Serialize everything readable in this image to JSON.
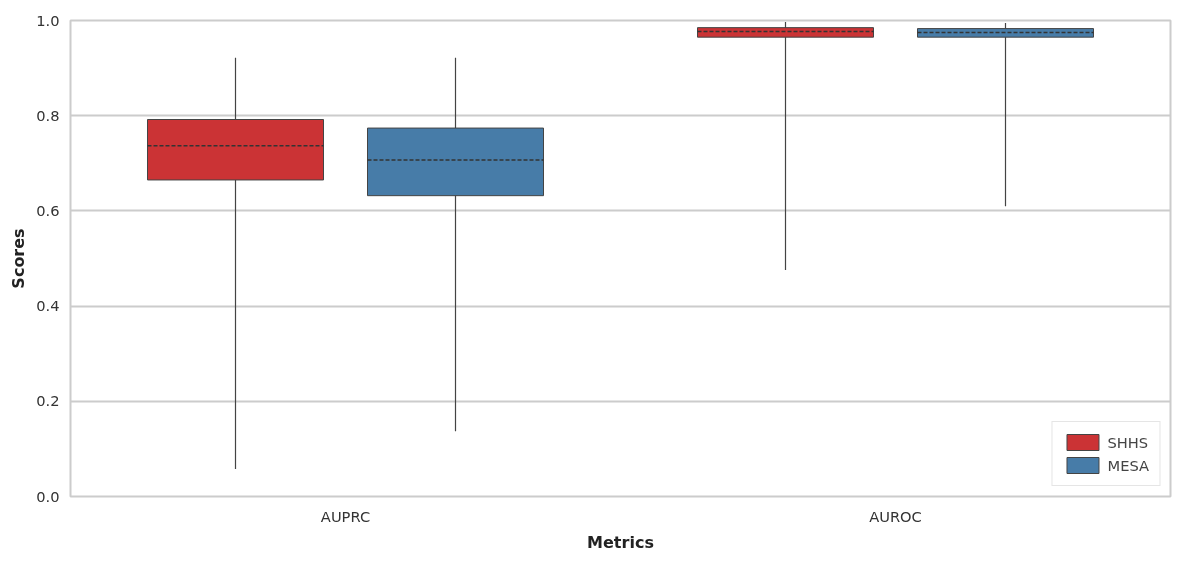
{
  "chart_data": {
    "type": "box",
    "xlabel": "Metrics",
    "ylabel": "Scores",
    "categories": [
      "AUPRC",
      "AUROC"
    ],
    "series": [
      {
        "name": "SHHS",
        "color": "#cb3335",
        "boxes": [
          {
            "low": 0.058,
            "q1": 0.665,
            "median": 0.737,
            "q3": 0.792,
            "high": 0.922
          },
          {
            "low": 0.476,
            "q1": 0.965,
            "median": 0.977,
            "q3": 0.985,
            "high": 0.997
          }
        ]
      },
      {
        "name": "MESA",
        "color": "#477ca8",
        "boxes": [
          {
            "low": 0.137,
            "q1": 0.632,
            "median": 0.707,
            "q3": 0.774,
            "high": 0.922
          },
          {
            "low": 0.61,
            "q1": 0.965,
            "median": 0.975,
            "q3": 0.983,
            "high": 0.995
          }
        ]
      }
    ],
    "ylim": [
      0,
      1
    ],
    "yticks": [
      {
        "value": 0,
        "label": "0.0"
      },
      0.2,
      0.4,
      0.6,
      0.8,
      {
        "value": 1,
        "label": "1.0"
      }
    ],
    "grid": "y",
    "legend": "bottom right"
  }
}
